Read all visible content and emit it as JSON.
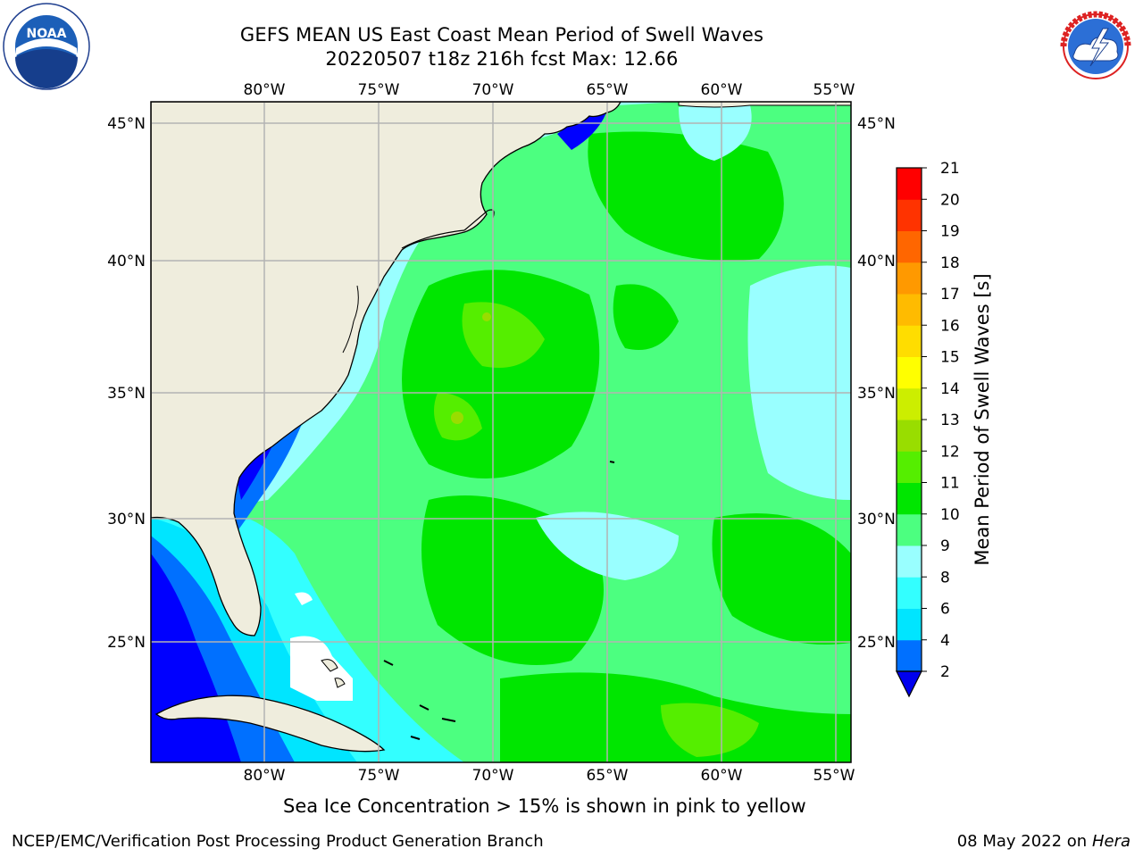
{
  "header": {
    "title_line1": "GEFS MEAN US East Coast Mean Period of Swell Waves",
    "title_line2": "20220507 t18z 216h fcst   Max: 12.66"
  },
  "logos": {
    "noaa": {
      "icon": "noaa-logo-icon",
      "text": "NOAA",
      "ring_text": "NATIONAL OCEANIC AND ATMOSPHERIC ADMINISTRATION · U.S. DEPARTMENT OF COMMERCE"
    },
    "nws": {
      "icon": "nws-logo-icon",
      "ring_text": "NATIONAL WEATHER SERVICE"
    }
  },
  "map": {
    "lon_ticks": [
      "80°W",
      "75°W",
      "70°W",
      "65°W",
      "60°W",
      "55°W"
    ],
    "lat_ticks": [
      "45°N",
      "40°N",
      "35°N",
      "30°N",
      "25°N"
    ],
    "colors": {
      "land": "#efeddd",
      "coast": "#000000",
      "grid": "#b3b3b3"
    }
  },
  "colorbar": {
    "label": "Mean Period of Swell Waves [s]",
    "ticks": [
      "2",
      "4",
      "6",
      "8",
      "9",
      "10",
      "11",
      "12",
      "13",
      "14",
      "15",
      "16",
      "17",
      "18",
      "19",
      "20",
      "21"
    ],
    "colors": [
      "#0000ff",
      "#0070ff",
      "#00e5ff",
      "#33ffff",
      "#99ffff",
      "#4cff80",
      "#00e600",
      "#55ee00",
      "#99dd00",
      "#ccee00",
      "#ffff00",
      "#ffdd00",
      "#ffbb00",
      "#ff9900",
      "#ff6600",
      "#ff3300",
      "#ff0000"
    ],
    "extend_color": "#0000ee"
  },
  "notes": {
    "sea_ice": "Sea Ice Concentration > 15% is shown in pink to yellow"
  },
  "footer": {
    "left": "NCEP/EMC/Verification Post Processing Product Generation Branch",
    "right_date": "08 May 2022 on",
    "right_host": "Hera"
  }
}
